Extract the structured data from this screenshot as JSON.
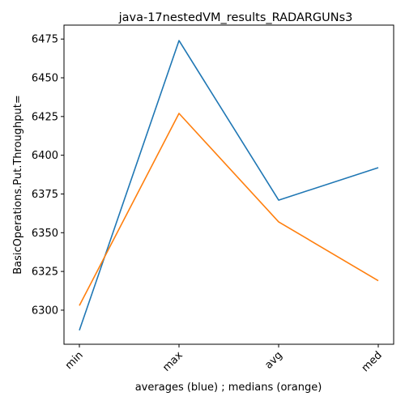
{
  "chart_data": {
    "type": "line",
    "title": "java-17nestedVM_results_RADARGUNs3",
    "xlabel": "averages (blue) ; medians (orange)",
    "ylabel": "BasicOperations.Put.Throughput=",
    "categories": [
      "min",
      "max",
      "avg",
      "med"
    ],
    "series": [
      {
        "values": [
          6287,
          6474,
          6371,
          6392
        ],
        "color": "#1f77b4"
      },
      {
        "values": [
          6303,
          6427,
          6357,
          6319
        ],
        "color": "#ff7f0e"
      }
    ],
    "ylim": [
      6278,
      6484
    ],
    "yticks": [
      "6300",
      "6325",
      "6350",
      "6375",
      "6400",
      "6425",
      "6450",
      "6475"
    ],
    "grid": false,
    "legend": "none"
  }
}
